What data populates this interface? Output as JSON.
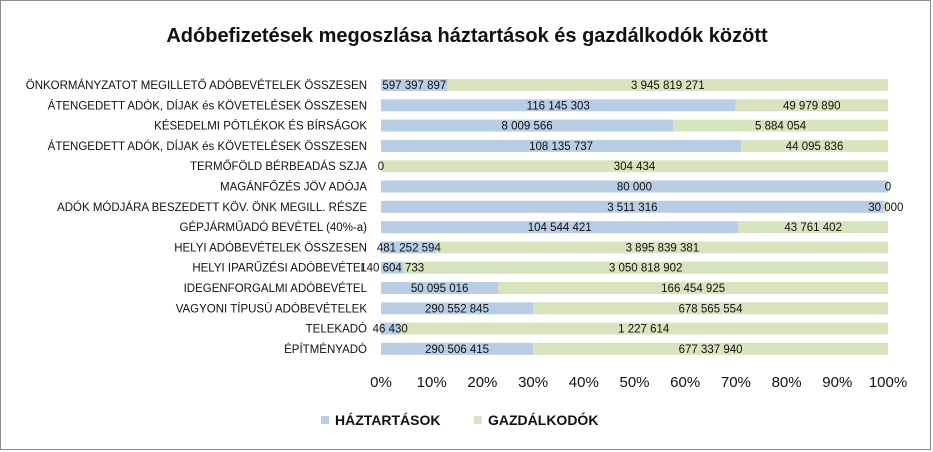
{
  "chart_data": {
    "type": "bar",
    "orientation": "horizontal",
    "stacked": "percent",
    "title": "Adóbefizetések megoszlása háztartások és gazdálkodók között",
    "categories": [
      "ÖNKORMÁNYZATOT MEGILLETŐ ADÓBEVÉTELEK ÖSSZESEN",
      "ÁTENGEDETT ADÓK, DÍJAK és KÖVETELÉSEK ÖSSZESEN",
      "KÉSEDELMI PÓTLÉKOK ÉS BÍRSÁGOK",
      "ÁTENGEDETT ADÓK, DÍJAK és KÖVETELÉSEK ÖSSZESEN",
      "TERMŐFÖLD BÉRBEADÁS SZJA",
      "MAGÁNFŐZÉS JÖV ADÓJA",
      "ADÓK MÓDJÁRA BESZEDETT KÖV. ÖNK MEGILL. RÉSZE",
      "GÉPJÁRMŰADÓ BEVÉTEL (40%-a)",
      "HELYI ADÓBEVÉTELEK ÖSSZESEN",
      "HELYI IPARŰZÉSI ADÓBEVÉTEL",
      "IDEGENFORGALMI ADÓBEVÉTEL",
      "VAGYONI TÍPUSÚ ADÓBEVÉTELEK",
      "TELEKADÓ",
      "ÉPÍTMÉNYADÓ"
    ],
    "series": [
      {
        "name": "HÁZTARTÁSOK",
        "color": "#b9cde5",
        "values": [
          597397897,
          116145303,
          8009566,
          108135737,
          0,
          80000,
          3511316,
          104544421,
          481252594,
          140604733,
          50095016,
          290552845,
          46430,
          290506415
        ],
        "labels": [
          "597 397 897",
          "116 145 303",
          "8 009 566",
          "108 135 737",
          "0",
          "80 000",
          "3 511 316",
          "104 544 421",
          "481 252 594",
          "140 604 733",
          "50 095 016",
          "290 552 845",
          "46 430",
          "290 506 415"
        ]
      },
      {
        "name": "GAZDÁLKODÓK",
        "color": "#d7e4bd",
        "values": [
          3945819271,
          49979890,
          5884054,
          44095836,
          304434,
          0,
          30000,
          43761402,
          3895839381,
          3050818902,
          166454925,
          678565554,
          1227614,
          677337940
        ],
        "labels": [
          "3 945 819 271",
          "49 979 890",
          "5 884 054",
          "44 095 836",
          "304 434",
          "0",
          "30 000",
          "43 761 402",
          "3 895 839 381",
          "3 050 818 902",
          "166 454 925",
          "678 565 554",
          "1 227 614",
          "677 337 940"
        ]
      }
    ],
    "xticks": [
      "0%",
      "10%",
      "20%",
      "30%",
      "40%",
      "50%",
      "60%",
      "70%",
      "80%",
      "90%",
      "100%"
    ],
    "xlim": [
      0,
      100
    ],
    "legend_position": "bottom",
    "grid": false
  }
}
